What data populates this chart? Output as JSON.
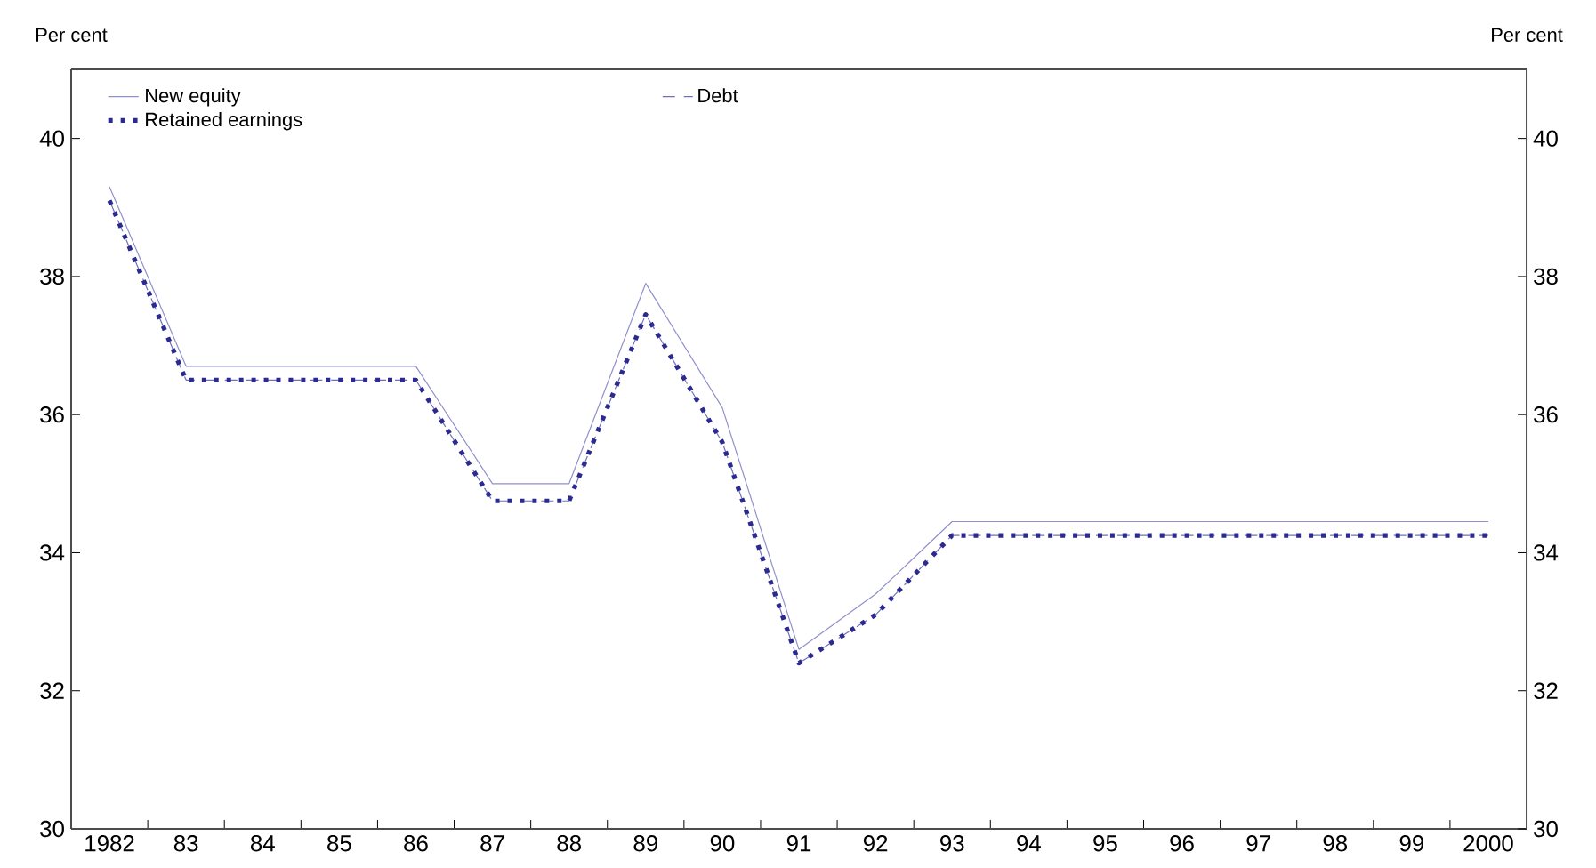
{
  "chart_data": {
    "type": "line",
    "ylabel": "Per cent",
    "y2label": "Per cent",
    "categories": [
      "1982",
      "83",
      "84",
      "85",
      "86",
      "87",
      "88",
      "89",
      "90",
      "91",
      "92",
      "93",
      "94",
      "95",
      "96",
      "97",
      "98",
      "99",
      "2000"
    ],
    "series": [
      {
        "name": "New equity",
        "color": "#9090cc",
        "line_style": "solid",
        "values": [
          39.3,
          36.7,
          36.7,
          36.7,
          36.7,
          35.0,
          35.0,
          37.9,
          36.1,
          32.6,
          33.4,
          34.45,
          34.45,
          34.45,
          34.45,
          34.45,
          34.45,
          34.45,
          34.45
        ]
      },
      {
        "name": "Debt",
        "color": "#7070bb",
        "line_style": "dashed",
        "values": [
          39.1,
          36.5,
          36.5,
          36.5,
          36.5,
          34.75,
          34.75,
          37.45,
          35.6,
          32.4,
          33.1,
          34.25,
          34.25,
          34.25,
          34.25,
          34.25,
          34.25,
          34.25,
          34.25
        ]
      },
      {
        "name": "Retained earnings",
        "color": "#2a2a90",
        "line_style": "dotted",
        "values": [
          39.1,
          36.5,
          36.5,
          36.5,
          36.5,
          34.75,
          34.75,
          37.45,
          35.6,
          32.4,
          33.1,
          34.25,
          34.25,
          34.25,
          34.25,
          34.25,
          34.25,
          34.25,
          34.25
        ]
      }
    ],
    "ylim": [
      30,
      41
    ],
    "yticks": [
      30,
      32,
      34,
      36,
      38,
      40
    ],
    "y2lim": [
      30,
      41
    ],
    "y2ticks": [
      30,
      32,
      34,
      36,
      38,
      40
    ],
    "grid": false,
    "legend": "top left",
    "marker": "none"
  }
}
